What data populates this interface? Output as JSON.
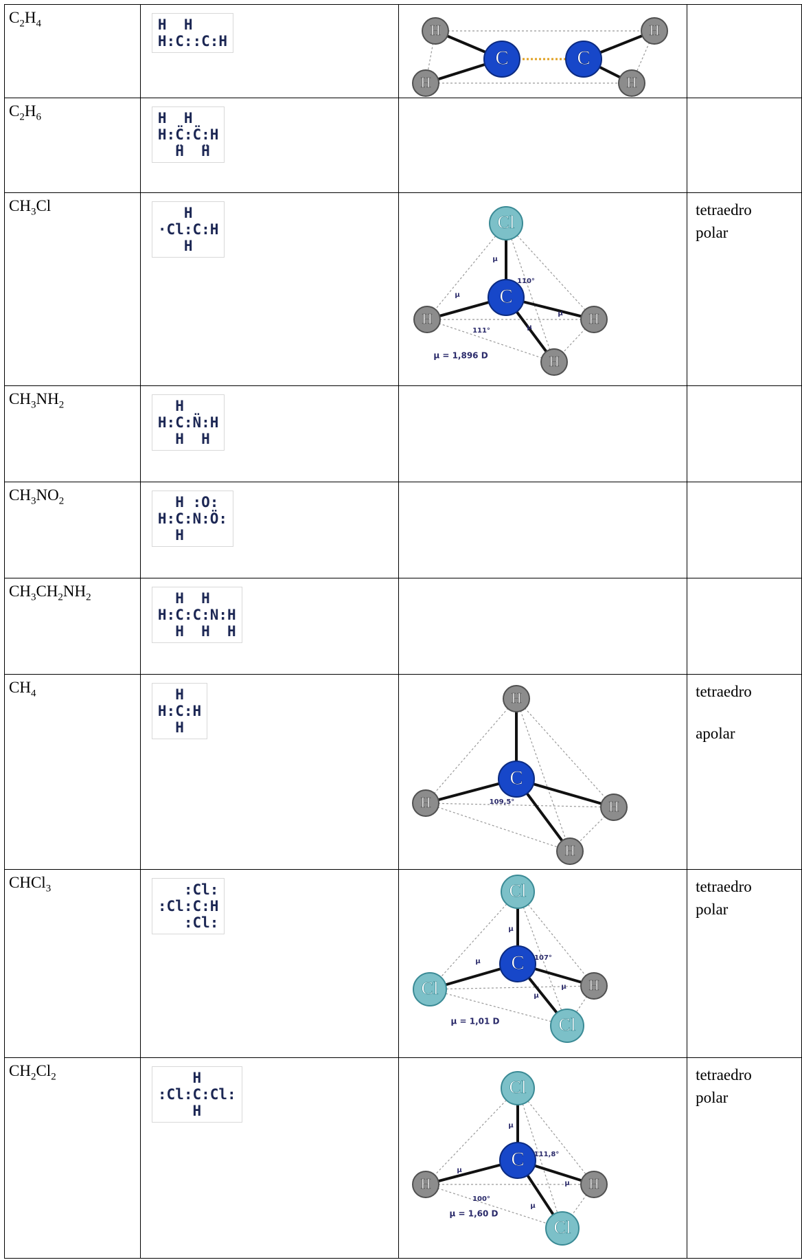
{
  "rows": [
    {
      "formula": [
        [
          "C",
          "2"
        ],
        [
          "H",
          "4"
        ]
      ],
      "lewis": [
        "H  H",
        "H:C::C:H"
      ],
      "model": {
        "atoms": [
          "H",
          "C",
          "C",
          "H",
          "H",
          "H"
        ]
      }
    },
    {
      "formula": [
        [
          "C",
          "2"
        ],
        [
          "H",
          "6"
        ]
      ],
      "lewis": [
        "H  H",
        "H:C̈:C̈:H",
        "  ̈H  ̈H"
      ]
    },
    {
      "formula": [
        [
          "CH",
          "3"
        ],
        [
          "Cl"
        ]
      ],
      "lewis": [
        "   H",
        "·Cl:C:H",
        "   H"
      ],
      "model": {
        "atoms": [
          "Cl",
          "C",
          "H",
          "H",
          "H"
        ],
        "notes": [
          "μ",
          "110°",
          "μ",
          "μ",
          "111°",
          "μ",
          "μ = 1,896 D"
        ]
      },
      "geometry": [
        "tetraedro",
        "polar"
      ]
    },
    {
      "formula": [
        [
          "CH",
          "3"
        ],
        [
          "NH",
          "2"
        ]
      ],
      "lewis": [
        "  H",
        "H:C:N̈:H",
        "  H  H"
      ]
    },
    {
      "formula": [
        [
          "CH",
          "3"
        ],
        [
          "NO",
          "2"
        ]
      ],
      "lewis": [
        "  H :O:",
        "H:C:N:Ö:",
        "  H"
      ]
    },
    {
      "formula": [
        [
          "CH",
          "3"
        ],
        [
          "CH",
          "2"
        ],
        [
          "NH",
          "2"
        ]
      ],
      "lewis": [
        "  H  H",
        "H:C:C:N:H",
        "  H  H  H"
      ]
    },
    {
      "formula": [
        [
          "CH",
          "4"
        ]
      ],
      "lewis": [
        "  H",
        "H:C:H",
        "  H"
      ],
      "model": {
        "atoms": [
          "H",
          "C",
          "H",
          "H",
          "H"
        ],
        "notes": [
          "109,5°"
        ]
      },
      "geometry": [
        "tetraedro",
        "apolar"
      ]
    },
    {
      "formula": [
        [
          "CHCl",
          "3"
        ]
      ],
      "lewis": [
        "   :Cl:",
        ":Cl:C:H",
        "   :Cl:"
      ],
      "model": {
        "atoms": [
          "Cl",
          "C",
          "Cl",
          "H",
          "Cl"
        ],
        "notes": [
          "μ",
          "107°",
          "μ",
          "μ",
          "μ",
          "μ = 1,01 D"
        ]
      },
      "geometry": [
        "tetraedro",
        "polar"
      ]
    },
    {
      "formula": [
        [
          "CH",
          "2"
        ],
        [
          "Cl",
          "2"
        ]
      ],
      "lewis": [
        "    H",
        ":Cl:C:Cl:",
        "    H"
      ],
      "model": {
        "atoms": [
          "Cl",
          "C",
          "H",
          "H",
          "Cl"
        ],
        "notes": [
          "μ",
          "111,8°",
          "μ",
          "μ",
          "100°",
          "μ",
          "μ = 1,60 D"
        ]
      },
      "geometry": [
        "tetraedro",
        "polar"
      ]
    }
  ]
}
